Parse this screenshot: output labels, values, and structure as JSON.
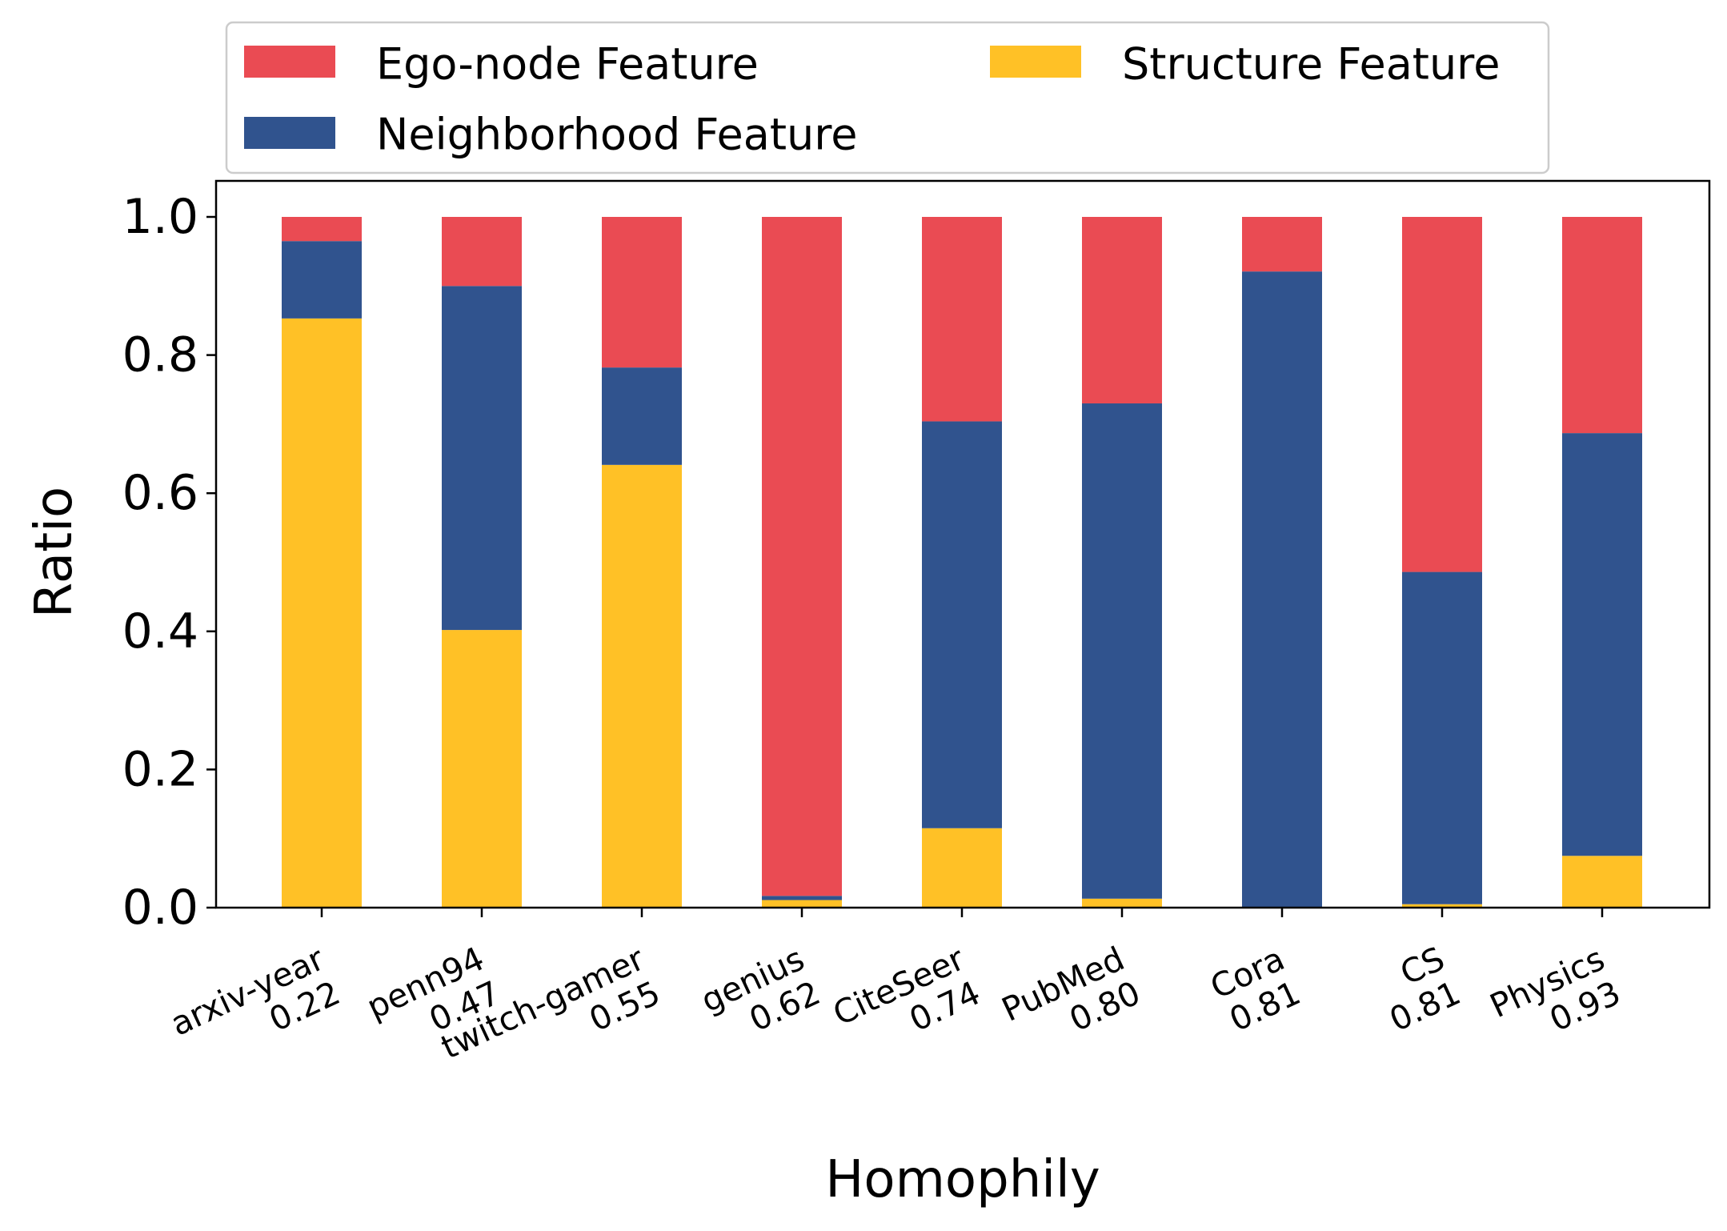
{
  "chart_data": {
    "type": "bar",
    "stacked": true,
    "xlabel": "Homophily",
    "ylabel": "Ratio",
    "ylim": [
      0,
      1.05
    ],
    "yticks": [
      "0.0",
      "0.2",
      "0.4",
      "0.6",
      "0.8",
      "1.0"
    ],
    "categories": [
      {
        "name": "arxiv-year",
        "homophily": "0.22"
      },
      {
        "name": "penn94",
        "homophily": "0.47"
      },
      {
        "name": "twitch-gamer",
        "homophily": "0.55"
      },
      {
        "name": "genius",
        "homophily": "0.62"
      },
      {
        "name": "CiteSeer",
        "homophily": "0.74"
      },
      {
        "name": "PubMed",
        "homophily": "0.80"
      },
      {
        "name": "Cora",
        "homophily": "0.81"
      },
      {
        "name": "CS",
        "homophily": "0.81"
      },
      {
        "name": "Physics",
        "homophily": "0.93"
      }
    ],
    "series": [
      {
        "name": "Structure Feature",
        "color": "#FFC126",
        "values": [
          0.853,
          0.402,
          0.641,
          0.011,
          0.115,
          0.013,
          0.0,
          0.005,
          0.075
        ]
      },
      {
        "name": "Neighborhood Feature",
        "color": "#30538E",
        "values": [
          0.112,
          0.498,
          0.141,
          0.006,
          0.589,
          0.717,
          0.921,
          0.481,
          0.612
        ]
      },
      {
        "name": "Ego-node Feature",
        "color": "#EA4B53",
        "values": [
          0.035,
          0.1,
          0.218,
          0.983,
          0.296,
          0.27,
          0.079,
          0.514,
          0.313
        ]
      }
    ],
    "legend": {
      "placement": "top",
      "order": [
        "Ego-node Feature",
        "Neighborhood Feature",
        "Structure Feature"
      ]
    },
    "grid": false
  }
}
